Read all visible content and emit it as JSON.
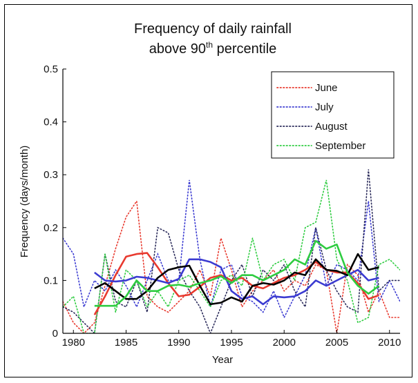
{
  "chart_data": {
    "type": "line",
    "title_line1": "Frequency of daily rainfall",
    "title_line2_prefix": "above 90",
    "title_line2_sup": "th",
    "title_line2_suffix": " percentile",
    "xlabel": "Year",
    "ylabel": "Frequency (days/month)",
    "xlim": [
      1979,
      2011
    ],
    "ylim": [
      0,
      0.5
    ],
    "xticks": [
      1980,
      1985,
      1990,
      1995,
      2000,
      2005,
      2010
    ],
    "xtick_labels": [
      "1980",
      "1985",
      "1990",
      "1995",
      "2000",
      "2005",
      "2010"
    ],
    "yticks": [
      0,
      0.1,
      0.2,
      0.3,
      0.4,
      0.5
    ],
    "ytick_labels": [
      "0",
      "0.1",
      "0.2",
      "0.3",
      "0.4",
      "0.5"
    ],
    "legend_position": "top-right",
    "series": [
      {
        "name": "June",
        "color": "#e8392e",
        "x": [
          1979,
          1980,
          1981,
          1982,
          1983,
          1984,
          1985,
          1986,
          1987,
          1988,
          1989,
          1990,
          1991,
          1992,
          1993,
          1994,
          1995,
          1996,
          1997,
          1998,
          1999,
          2000,
          2001,
          2002,
          2003,
          2004,
          2005,
          2006,
          2007,
          2008,
          2009,
          2010,
          2011
        ],
        "values": [
          0.06,
          0.02,
          0.0,
          0.02,
          0.09,
          0.16,
          0.22,
          0.25,
          0.07,
          0.05,
          0.04,
          0.06,
          0.08,
          0.12,
          0.07,
          0.18,
          0.12,
          0.05,
          0.08,
          0.1,
          0.12,
          0.08,
          0.1,
          0.09,
          0.13,
          0.12,
          0.0,
          0.13,
          0.11,
          0.04,
          0.08,
          0.03,
          0.03
        ],
        "smooth_x": [
          1982,
          1983,
          1984,
          1985,
          1986,
          1987,
          1988,
          1989,
          1990,
          1991,
          1992,
          1993,
          1994,
          1995,
          1996,
          1997,
          1998,
          1999,
          2000,
          2001,
          2002,
          2003,
          2004,
          2005,
          2006,
          2007,
          2008,
          2009
        ],
        "smooth": [
          0.035,
          0.07,
          0.11,
          0.145,
          0.15,
          0.152,
          0.125,
          0.095,
          0.07,
          0.073,
          0.088,
          0.105,
          0.11,
          0.1,
          0.105,
          0.09,
          0.085,
          0.095,
          0.105,
          0.11,
          0.12,
          0.135,
          0.12,
          0.115,
          0.115,
          0.095,
          0.065,
          0.072
        ]
      },
      {
        "name": "July",
        "color": "#3b3bd1",
        "x": [
          1979,
          1980,
          1981,
          1982,
          1983,
          1984,
          1985,
          1986,
          1987,
          1988,
          1989,
          1990,
          1991,
          1992,
          1993,
          1994,
          1995,
          1996,
          1997,
          1998,
          1999,
          2000,
          2001,
          2002,
          2003,
          2004,
          2005,
          2006,
          2007,
          2008,
          2009,
          2010,
          2011
        ],
        "values": [
          0.18,
          0.15,
          0.05,
          0.1,
          0.08,
          0.12,
          0.09,
          0.05,
          0.1,
          0.15,
          0.1,
          0.1,
          0.29,
          0.14,
          0.05,
          0.12,
          0.13,
          0.07,
          0.06,
          0.04,
          0.08,
          0.03,
          0.07,
          0.11,
          0.2,
          0.09,
          0.13,
          0.12,
          0.1,
          0.25,
          0.06,
          0.1,
          0.06
        ],
        "smooth_x": [
          1982,
          1983,
          1984,
          1985,
          1986,
          1987,
          1988,
          1989,
          1990,
          1991,
          1992,
          1993,
          1994,
          1995,
          1996,
          1997,
          1998,
          1999,
          2000,
          2001,
          2002,
          2003,
          2004,
          2005,
          2006,
          2007,
          2008,
          2009
        ],
        "smooth": [
          0.115,
          0.1,
          0.098,
          0.1,
          0.107,
          0.105,
          0.1,
          0.095,
          0.103,
          0.14,
          0.14,
          0.135,
          0.125,
          0.08,
          0.065,
          0.07,
          0.055,
          0.07,
          0.068,
          0.07,
          0.08,
          0.1,
          0.09,
          0.1,
          0.11,
          0.12,
          0.1,
          0.105
        ]
      },
      {
        "name": "August",
        "color": "#2a2a5a",
        "x": [
          1979,
          1980,
          1981,
          1982,
          1983,
          1984,
          1985,
          1986,
          1987,
          1988,
          1989,
          1990,
          1991,
          1992,
          1993,
          1994,
          1995,
          1996,
          1997,
          1998,
          1999,
          2000,
          2001,
          2002,
          2003,
          2004,
          2005,
          2006,
          2007,
          2008,
          2009,
          2010,
          2011
        ],
        "values": [
          0.05,
          0.04,
          0.02,
          0.0,
          0.15,
          0.06,
          0.05,
          0.1,
          0.04,
          0.2,
          0.19,
          0.12,
          0.08,
          0.05,
          0.0,
          0.05,
          0.1,
          0.13,
          0.07,
          0.12,
          0.1,
          0.13,
          0.08,
          0.05,
          0.2,
          0.12,
          0.08,
          0.05,
          0.04,
          0.31,
          0.08,
          0.1,
          0.1
        ],
        "smooth_x": [
          1982,
          1983,
          1984,
          1985,
          1986,
          1987,
          1988,
          1989,
          1990,
          1991,
          1992,
          1993,
          1994,
          1995,
          1996,
          1997,
          1998,
          1999,
          2000,
          2001,
          2002,
          2003,
          2004,
          2005,
          2006,
          2007,
          2008,
          2009
        ],
        "smooth": [
          0.085,
          0.095,
          0.08,
          0.065,
          0.065,
          0.08,
          0.105,
          0.12,
          0.125,
          0.128,
          0.09,
          0.055,
          0.058,
          0.068,
          0.06,
          0.09,
          0.095,
          0.092,
          0.1,
          0.115,
          0.11,
          0.14,
          0.12,
          0.118,
          0.11,
          0.15,
          0.12,
          0.125
        ]
      },
      {
        "name": "September",
        "color": "#2ecc40",
        "x": [
          1979,
          1980,
          1981,
          1982,
          1983,
          1984,
          1985,
          1986,
          1987,
          1988,
          1989,
          1990,
          1991,
          1992,
          1993,
          1994,
          1995,
          1996,
          1997,
          1998,
          1999,
          2000,
          2001,
          2002,
          2003,
          2004,
          2005,
          2006,
          2007,
          2008,
          2009,
          2010,
          2011
        ],
        "values": [
          0.05,
          0.07,
          0.0,
          0.0,
          0.15,
          0.04,
          0.12,
          0.1,
          0.05,
          0.08,
          0.05,
          0.1,
          0.11,
          0.08,
          0.05,
          0.1,
          0.11,
          0.09,
          0.18,
          0.1,
          0.13,
          0.14,
          0.1,
          0.2,
          0.21,
          0.29,
          0.14,
          0.1,
          0.02,
          0.03,
          0.13,
          0.14,
          0.12
        ],
        "smooth_x": [
          1982,
          1983,
          1984,
          1985,
          1986,
          1987,
          1988,
          1989,
          1990,
          1991,
          1992,
          1993,
          1994,
          1995,
          1996,
          1997,
          1998,
          1999,
          2000,
          2001,
          2002,
          2003,
          2004,
          2005,
          2006,
          2007,
          2008,
          2009
        ],
        "smooth": [
          0.052,
          0.052,
          0.052,
          0.07,
          0.1,
          0.08,
          0.08,
          0.09,
          0.092,
          0.088,
          0.095,
          0.1,
          0.108,
          0.095,
          0.11,
          0.11,
          0.1,
          0.11,
          0.12,
          0.14,
          0.13,
          0.175,
          0.16,
          0.168,
          0.115,
          0.09,
          0.075,
          0.09
        ]
      }
    ]
  }
}
